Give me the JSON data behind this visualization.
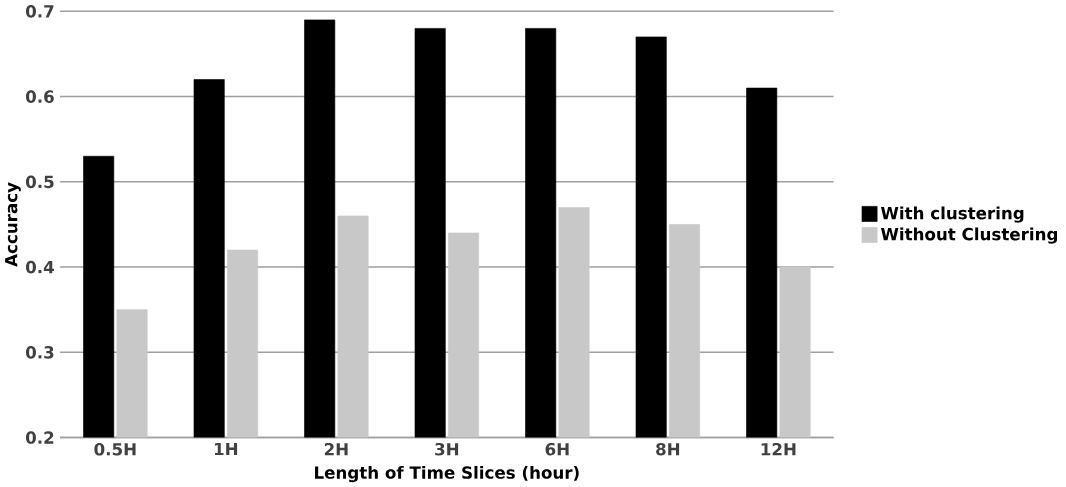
{
  "chart_data": {
    "type": "bar",
    "xlabel": "Length of Time Slices (hour)",
    "ylabel": "Accuracy",
    "categories": [
      "0.5H",
      "1H",
      "2H",
      "3H",
      "6H",
      "8H",
      "12H"
    ],
    "series": [
      {
        "name": "With clustering",
        "color": "#000000",
        "values": [
          0.53,
          0.62,
          0.69,
          0.68,
          0.68,
          0.67,
          0.61
        ]
      },
      {
        "name": "Without Clustering",
        "color": "#c8c8c8",
        "values": [
          0.35,
          0.42,
          0.46,
          0.44,
          0.47,
          0.45,
          0.4
        ]
      }
    ],
    "ylim": [
      0.2,
      0.7
    ],
    "yticks": [
      0.2,
      0.3,
      0.4,
      0.5,
      0.6,
      0.7
    ],
    "grid": "y",
    "legend": "right"
  }
}
